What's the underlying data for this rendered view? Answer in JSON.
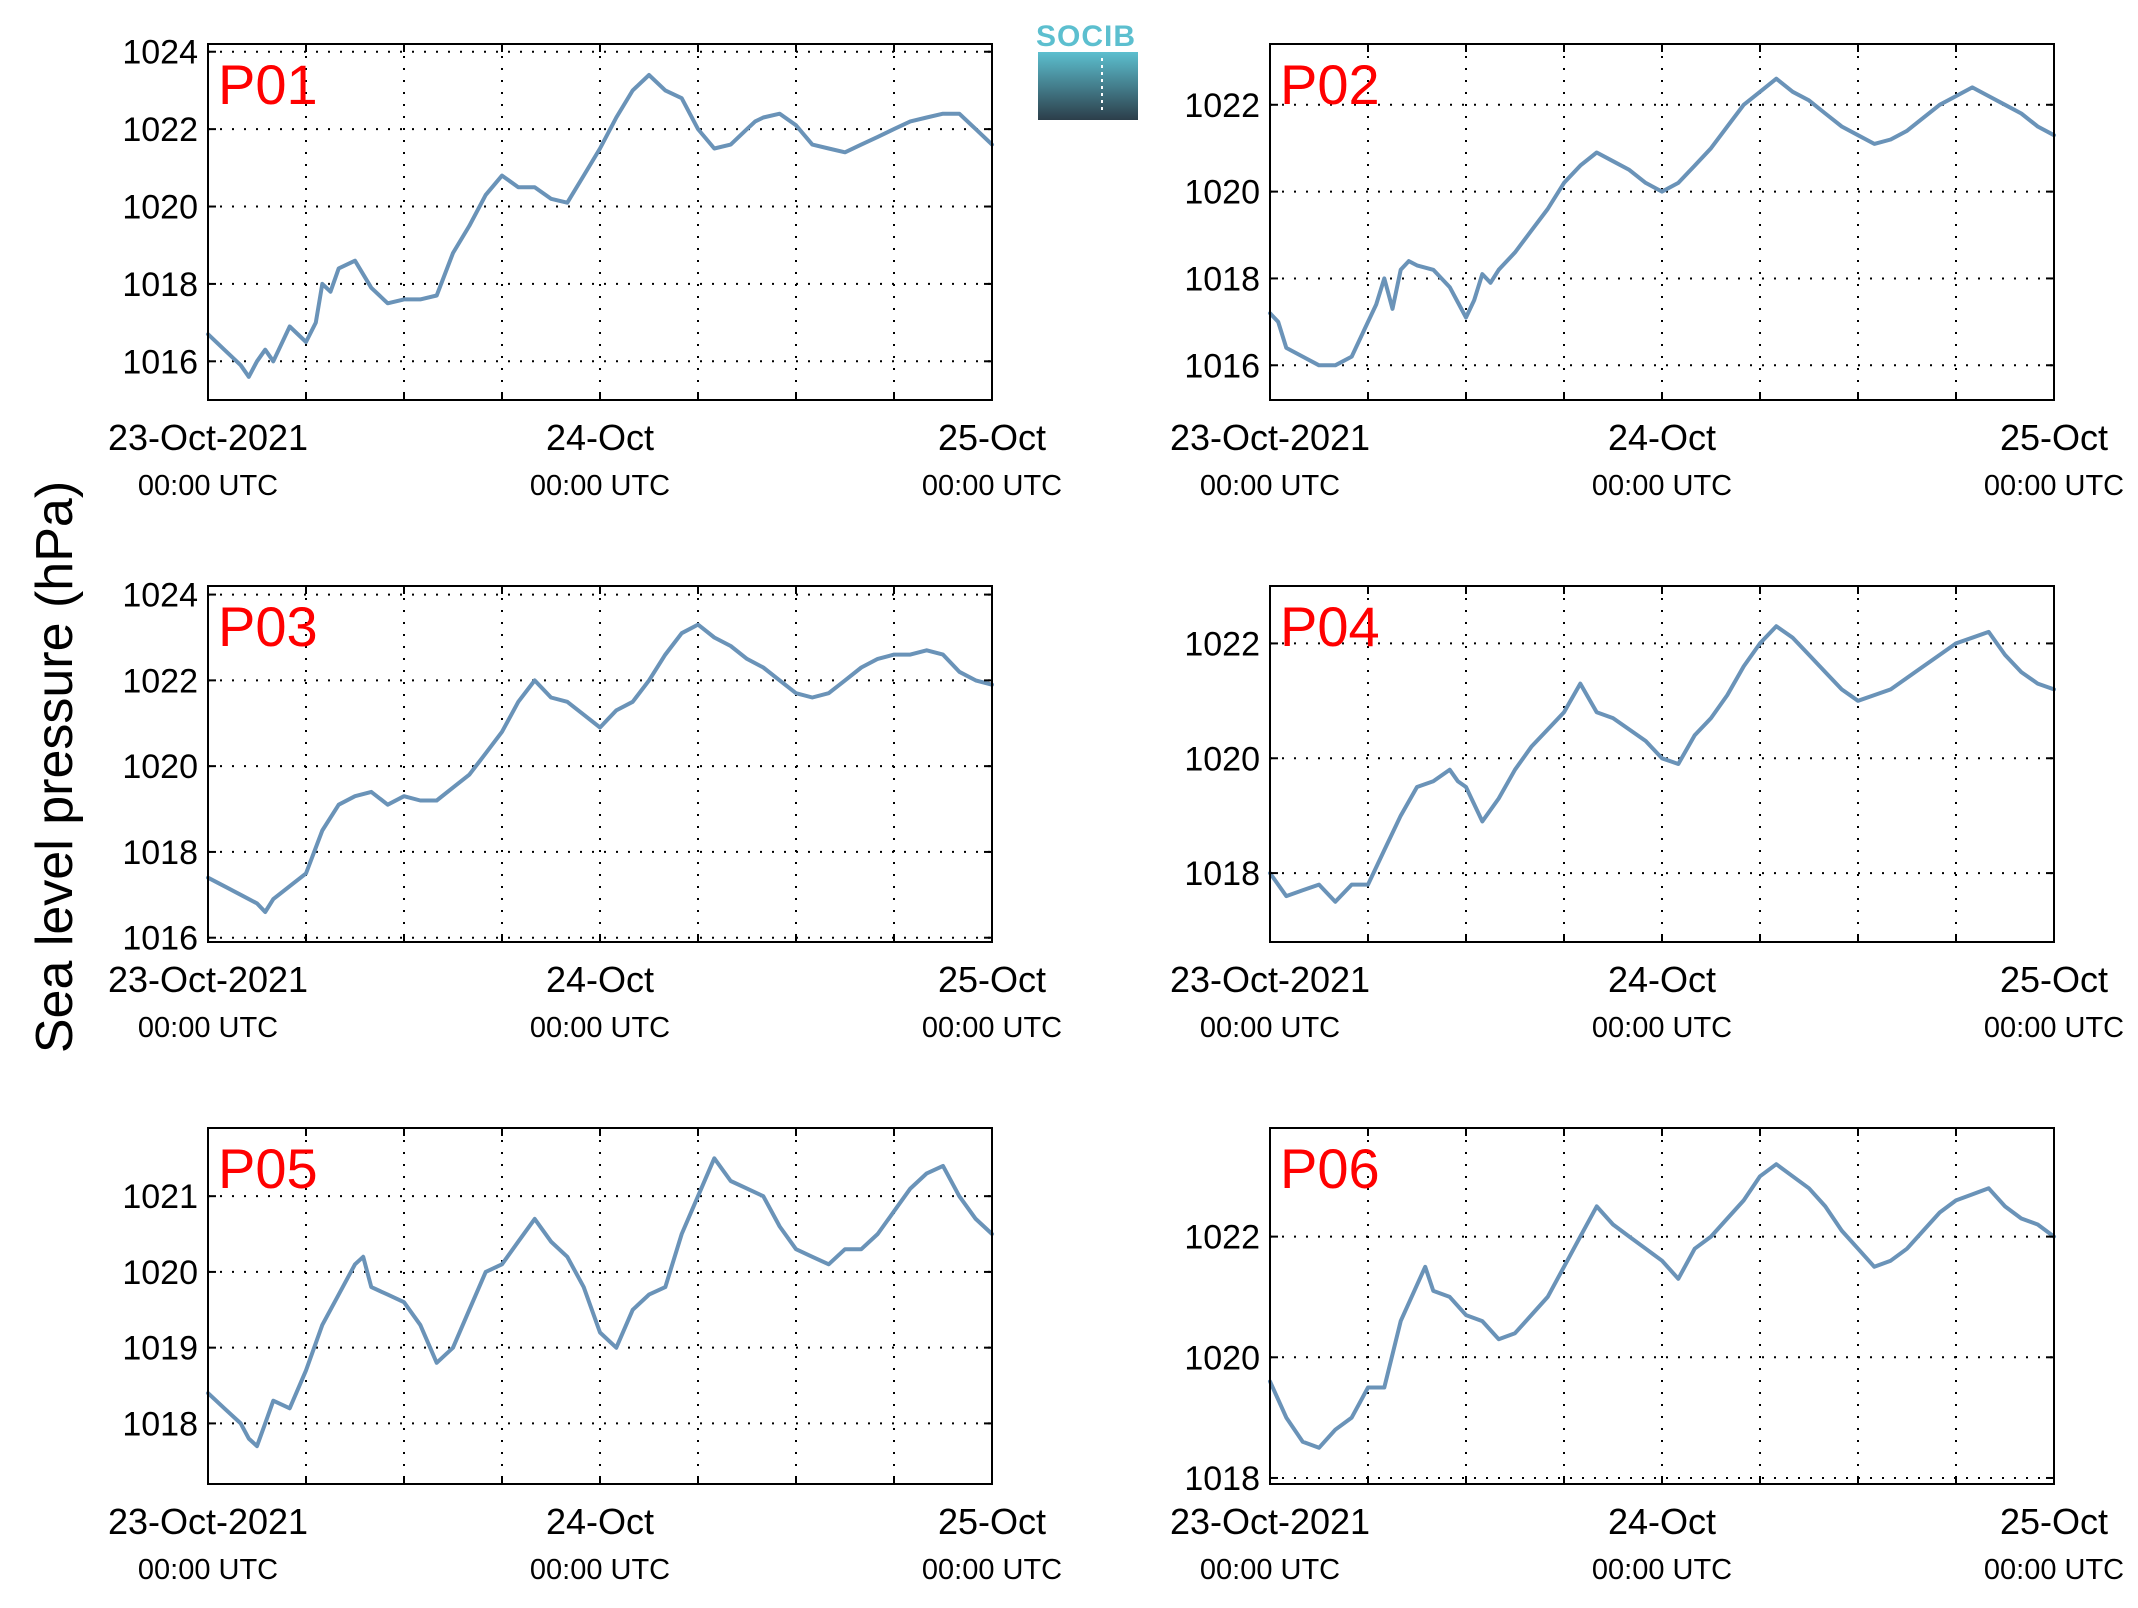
{
  "figure": {
    "ylabel": "Sea level pressure (hPa)",
    "logo_text": "SOCIB"
  },
  "colors": {
    "line": "#6a93b8",
    "panel_label": "#ff0000",
    "axes": "#000000",
    "grid": "#000000",
    "logo_top": "#5cbfcf",
    "logo_bottom": "#2c3e4a"
  },
  "chart_data": [
    {
      "type": "line",
      "panel_label": "P01",
      "xlim": [
        0,
        48
      ],
      "ylim": [
        1015,
        1024.2
      ],
      "yticks": [
        1016,
        1018,
        1020,
        1022,
        1024
      ],
      "xticks": [
        {
          "x": 0,
          "label": "23-Oct-2021",
          "sublabel": "00:00 UTC"
        },
        {
          "x": 24,
          "label": "24-Oct",
          "sublabel": "00:00 UTC"
        },
        {
          "x": 48,
          "label": "25-Oct",
          "sublabel": "00:00 UTC"
        }
      ],
      "xgrid": [
        6,
        12,
        18,
        24,
        30,
        36,
        42
      ],
      "x_units": "hours since 23-Oct-2021 00:00 UTC",
      "series": [
        {
          "x": [
            0,
            1,
            2,
            2.5,
            3,
            3.5,
            4,
            5,
            6,
            6.6,
            7,
            7.5,
            8,
            9,
            10,
            11,
            12,
            13,
            14,
            15,
            16,
            17,
            18,
            19,
            20,
            21,
            22,
            23,
            24,
            25,
            26,
            27,
            28,
            29,
            30,
            31,
            32,
            33,
            33.5,
            34,
            35,
            36,
            37,
            38,
            39,
            40,
            41,
            42,
            43,
            44,
            45,
            46,
            47,
            48
          ],
          "y": [
            1016.7,
            1016.3,
            1015.9,
            1015.6,
            1016.0,
            1016.3,
            1016.0,
            1016.9,
            1016.5,
            1017.0,
            1018.0,
            1017.8,
            1018.4,
            1018.6,
            1017.9,
            1017.5,
            1017.6,
            1017.6,
            1017.7,
            1018.8,
            1019.5,
            1020.3,
            1020.8,
            1020.5,
            1020.5,
            1020.2,
            1020.1,
            1020.8,
            1021.5,
            1022.3,
            1023.0,
            1023.4,
            1023.0,
            1022.8,
            1022.0,
            1021.5,
            1021.6,
            1022.0,
            1022.2,
            1022.3,
            1022.4,
            1022.1,
            1021.6,
            1021.5,
            1021.4,
            1021.6,
            1021.8,
            1022.0,
            1022.2,
            1022.3,
            1022.4,
            1022.4,
            1022.0,
            1021.6
          ]
        }
      ]
    },
    {
      "type": "line",
      "panel_label": "P02",
      "xlim": [
        0,
        48
      ],
      "ylim": [
        1015.2,
        1023.4
      ],
      "yticks": [
        1016,
        1018,
        1020,
        1022
      ],
      "xticks": [
        {
          "x": 0,
          "label": "23-Oct-2021",
          "sublabel": "00:00 UTC"
        },
        {
          "x": 24,
          "label": "24-Oct",
          "sublabel": "00:00 UTC"
        },
        {
          "x": 48,
          "label": "25-Oct",
          "sublabel": "00:00 UTC"
        }
      ],
      "xgrid": [
        6,
        12,
        18,
        24,
        30,
        36,
        42
      ],
      "x_units": "hours since 23-Oct-2021 00:00 UTC",
      "series": [
        {
          "x": [
            0,
            0.5,
            1,
            2,
            3,
            4,
            5,
            6,
            6.5,
            7,
            7.5,
            8,
            8.5,
            9,
            10,
            11,
            12,
            12.5,
            13,
            13.5,
            14,
            15,
            16,
            17,
            18,
            19,
            20,
            21,
            22,
            23,
            24,
            25,
            26,
            27,
            28,
            29,
            30,
            31,
            32,
            33,
            34,
            35,
            36,
            37,
            38,
            39,
            40,
            41,
            42,
            43,
            44,
            45,
            46,
            47,
            48
          ],
          "y": [
            1017.2,
            1017.0,
            1016.4,
            1016.2,
            1016.0,
            1016.0,
            1016.2,
            1017.0,
            1017.4,
            1018.0,
            1017.3,
            1018.2,
            1018.4,
            1018.3,
            1018.2,
            1017.8,
            1017.1,
            1017.5,
            1018.1,
            1017.9,
            1018.2,
            1018.6,
            1019.1,
            1019.6,
            1020.2,
            1020.6,
            1020.9,
            1020.7,
            1020.5,
            1020.2,
            1020.0,
            1020.2,
            1020.6,
            1021.0,
            1021.5,
            1022.0,
            1022.3,
            1022.6,
            1022.3,
            1022.1,
            1021.8,
            1021.5,
            1021.3,
            1021.1,
            1021.2,
            1021.4,
            1021.7,
            1022.0,
            1022.2,
            1022.4,
            1022.2,
            1022.0,
            1021.8,
            1021.5,
            1021.3
          ]
        }
      ]
    },
    {
      "type": "line",
      "panel_label": "P03",
      "xlim": [
        0,
        48
      ],
      "ylim": [
        1015.9,
        1024.2
      ],
      "yticks": [
        1016,
        1018,
        1020,
        1022,
        1024
      ],
      "xticks": [
        {
          "x": 0,
          "label": "23-Oct-2021",
          "sublabel": "00:00 UTC"
        },
        {
          "x": 24,
          "label": "24-Oct",
          "sublabel": "00:00 UTC"
        },
        {
          "x": 48,
          "label": "25-Oct",
          "sublabel": "00:00 UTC"
        }
      ],
      "xgrid": [
        6,
        12,
        18,
        24,
        30,
        36,
        42
      ],
      "x_units": "hours since 23-Oct-2021 00:00 UTC",
      "series": [
        {
          "x": [
            0,
            1,
            2,
            3,
            3.5,
            4,
            5,
            6,
            7,
            8,
            9,
            10,
            11,
            12,
            13,
            14,
            15,
            16,
            17,
            18,
            19,
            20,
            21,
            22,
            23,
            24,
            25,
            26,
            27,
            28,
            29,
            30,
            31,
            32,
            33,
            34,
            35,
            36,
            37,
            38,
            39,
            40,
            41,
            42,
            43,
            44,
            45,
            46,
            47,
            48
          ],
          "y": [
            1017.4,
            1017.2,
            1017.0,
            1016.8,
            1016.6,
            1016.9,
            1017.2,
            1017.5,
            1018.5,
            1019.1,
            1019.3,
            1019.4,
            1019.1,
            1019.3,
            1019.2,
            1019.2,
            1019.5,
            1019.8,
            1020.3,
            1020.8,
            1021.5,
            1022.0,
            1021.6,
            1021.5,
            1021.2,
            1020.9,
            1021.3,
            1021.5,
            1022.0,
            1022.6,
            1023.1,
            1023.3,
            1023.0,
            1022.8,
            1022.5,
            1022.3,
            1022.0,
            1021.7,
            1021.6,
            1021.7,
            1022.0,
            1022.3,
            1022.5,
            1022.6,
            1022.6,
            1022.7,
            1022.6,
            1022.2,
            1022.0,
            1021.9
          ]
        }
      ]
    },
    {
      "type": "line",
      "panel_label": "P04",
      "xlim": [
        0,
        48
      ],
      "ylim": [
        1016.8,
        1023.0
      ],
      "yticks": [
        1018,
        1020,
        1022
      ],
      "xticks": [
        {
          "x": 0,
          "label": "23-Oct-2021",
          "sublabel": "00:00 UTC"
        },
        {
          "x": 24,
          "label": "24-Oct",
          "sublabel": "00:00 UTC"
        },
        {
          "x": 48,
          "label": "25-Oct",
          "sublabel": "00:00 UTC"
        }
      ],
      "xgrid": [
        6,
        12,
        18,
        24,
        30,
        36,
        42
      ],
      "x_units": "hours since 23-Oct-2021 00:00 UTC",
      "series": [
        {
          "x": [
            0,
            1,
            2,
            3,
            4,
            5,
            6,
            7,
            8,
            9,
            10,
            11,
            11.5,
            12,
            13,
            14,
            15,
            16,
            17,
            18,
            19,
            20,
            21,
            22,
            23,
            24,
            25,
            26,
            27,
            28,
            29,
            30,
            31,
            32,
            33,
            34,
            35,
            36,
            37,
            38,
            39,
            40,
            41,
            42,
            43,
            44,
            45,
            46,
            47,
            48
          ],
          "y": [
            1018.0,
            1017.6,
            1017.7,
            1017.8,
            1017.5,
            1017.8,
            1017.8,
            1018.4,
            1019.0,
            1019.5,
            1019.6,
            1019.8,
            1019.6,
            1019.5,
            1018.9,
            1019.3,
            1019.8,
            1020.2,
            1020.5,
            1020.8,
            1021.3,
            1020.8,
            1020.7,
            1020.5,
            1020.3,
            1020.0,
            1019.9,
            1020.4,
            1020.7,
            1021.1,
            1021.6,
            1022.0,
            1022.3,
            1022.1,
            1021.8,
            1021.5,
            1021.2,
            1021.0,
            1021.1,
            1021.2,
            1021.4,
            1021.6,
            1021.8,
            1022.0,
            1022.1,
            1022.2,
            1021.8,
            1021.5,
            1021.3,
            1021.2
          ]
        }
      ]
    },
    {
      "type": "line",
      "panel_label": "P05",
      "xlim": [
        0,
        48
      ],
      "ylim": [
        1017.2,
        1021.9
      ],
      "yticks": [
        1018,
        1019,
        1020,
        1021
      ],
      "xticks": [
        {
          "x": 0,
          "label": "23-Oct-2021",
          "sublabel": "00:00 UTC"
        },
        {
          "x": 24,
          "label": "24-Oct",
          "sublabel": "00:00 UTC"
        },
        {
          "x": 48,
          "label": "25-Oct",
          "sublabel": "00:00 UTC"
        }
      ],
      "xgrid": [
        6,
        12,
        18,
        24,
        30,
        36,
        42
      ],
      "x_units": "hours since 23-Oct-2021 00:00 UTC",
      "series": [
        {
          "x": [
            0,
            1,
            2,
            2.5,
            3,
            3.5,
            4,
            5,
            6,
            7,
            8,
            9,
            9.5,
            10,
            11,
            12,
            13,
            14,
            15,
            16,
            17,
            18,
            19,
            20,
            21,
            22,
            23,
            24,
            25,
            26,
            27,
            28,
            29,
            30,
            31,
            32,
            33,
            34,
            35,
            36,
            37,
            38,
            39,
            40,
            41,
            42,
            43,
            44,
            45,
            46,
            47,
            48
          ],
          "y": [
            1018.4,
            1018.2,
            1018.0,
            1017.8,
            1017.7,
            1018.0,
            1018.3,
            1018.2,
            1018.7,
            1019.3,
            1019.7,
            1020.1,
            1020.2,
            1019.8,
            1019.7,
            1019.6,
            1019.3,
            1018.8,
            1019.0,
            1019.5,
            1020.0,
            1020.1,
            1020.4,
            1020.7,
            1020.4,
            1020.2,
            1019.8,
            1019.2,
            1019.0,
            1019.5,
            1019.7,
            1019.8,
            1020.5,
            1021.0,
            1021.5,
            1021.2,
            1021.1,
            1021.0,
            1020.6,
            1020.3,
            1020.2,
            1020.1,
            1020.3,
            1020.3,
            1020.5,
            1020.8,
            1021.1,
            1021.3,
            1021.4,
            1021.0,
            1020.7,
            1020.5
          ]
        }
      ]
    },
    {
      "type": "line",
      "panel_label": "P06",
      "xlim": [
        0,
        48
      ],
      "ylim": [
        1017.9,
        1023.8
      ],
      "yticks": [
        1018,
        1020,
        1022
      ],
      "xticks": [
        {
          "x": 0,
          "label": "23-Oct-2021",
          "sublabel": "00:00 UTC"
        },
        {
          "x": 24,
          "label": "24-Oct",
          "sublabel": "00:00 UTC"
        },
        {
          "x": 48,
          "label": "25-Oct",
          "sublabel": "00:00 UTC"
        }
      ],
      "xgrid": [
        6,
        12,
        18,
        24,
        30,
        36,
        42
      ],
      "x_units": "hours since 23-Oct-2021 00:00 UTC",
      "series": [
        {
          "x": [
            0,
            1,
            2,
            3,
            4,
            5,
            6,
            7,
            8,
            9,
            9.5,
            10,
            11,
            12,
            13,
            14,
            15,
            16,
            17,
            18,
            19,
            20,
            21,
            22,
            23,
            24,
            25,
            26,
            27,
            28,
            29,
            30,
            31,
            32,
            33,
            34,
            35,
            36,
            37,
            38,
            39,
            40,
            41,
            42,
            43,
            44,
            45,
            46,
            47,
            48
          ],
          "y": [
            1019.6,
            1019.0,
            1018.6,
            1018.5,
            1018.8,
            1019.0,
            1019.5,
            1019.5,
            1020.6,
            1021.2,
            1021.5,
            1021.1,
            1021.0,
            1020.7,
            1020.6,
            1020.3,
            1020.4,
            1020.7,
            1021.0,
            1021.5,
            1022.0,
            1022.5,
            1022.2,
            1022.0,
            1021.8,
            1021.6,
            1021.3,
            1021.8,
            1022.0,
            1022.3,
            1022.6,
            1023.0,
            1023.2,
            1023.0,
            1022.8,
            1022.5,
            1022.1,
            1021.8,
            1021.5,
            1021.6,
            1021.8,
            1022.1,
            1022.4,
            1022.6,
            1022.7,
            1022.8,
            1022.5,
            1022.3,
            1022.2,
            1022.0
          ]
        }
      ]
    }
  ]
}
